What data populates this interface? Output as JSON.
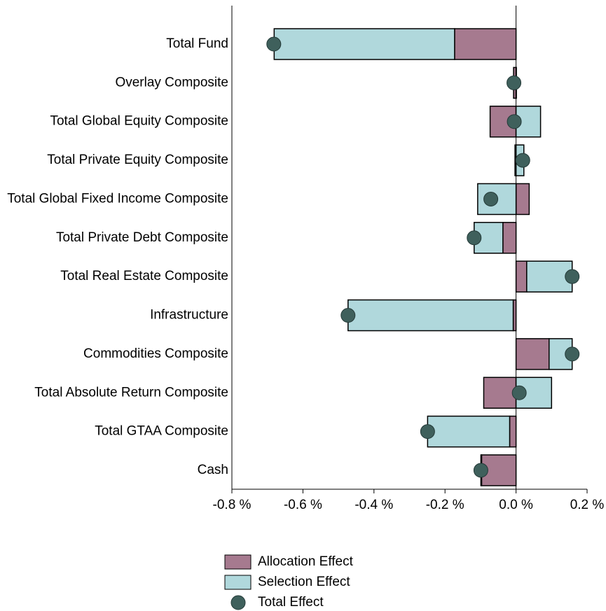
{
  "chart_data": {
    "type": "diverging_bar",
    "categories": [
      "Total Fund",
      "Overlay Composite",
      "Total Global Equity Composite",
      "Total Private Equity Composite",
      "Total Global Fixed Income Composite",
      "Total Private Debt Composite",
      "Total Real Estate Composite",
      "Infrastructure",
      "Commodities Composite",
      "Total Absolute Return Composite",
      "Total GTAA Composite",
      "Cash"
    ],
    "series": [
      {
        "name": "Allocation Effect",
        "color": "#a67a8f",
        "values": [
          -0.173,
          -0.007,
          -0.073,
          -0.003,
          0.037,
          -0.037,
          0.03,
          -0.008,
          0.093,
          -0.091,
          -0.018,
          -0.097
        ]
      },
      {
        "name": "Selection Effect",
        "color": "#b0d8dc",
        "values": [
          -0.508,
          0.001,
          0.069,
          0.022,
          -0.108,
          -0.081,
          0.128,
          -0.465,
          0.065,
          0.1,
          -0.231,
          -0.002
        ]
      },
      {
        "name": "Total Effect",
        "color": "#3f605c",
        "marker": "circle",
        "values": [
          -0.682,
          -0.006,
          -0.005,
          0.019,
          -0.071,
          -0.118,
          0.158,
          -0.473,
          0.158,
          0.009,
          -0.249,
          -0.099
        ]
      }
    ],
    "xlim": [
      -0.8,
      0.2
    ],
    "xticks": [
      {
        "value": -0.8,
        "label": "-0.8 %"
      },
      {
        "value": -0.6,
        "label": "-0.6 %"
      },
      {
        "value": -0.4,
        "label": "-0.4 %"
      },
      {
        "value": -0.2,
        "label": "-0.2 %"
      },
      {
        "value": 0,
        "label": "0.0 %"
      },
      {
        "value": 0.2,
        "label": "0.2 %"
      }
    ],
    "legend": "bottom"
  }
}
